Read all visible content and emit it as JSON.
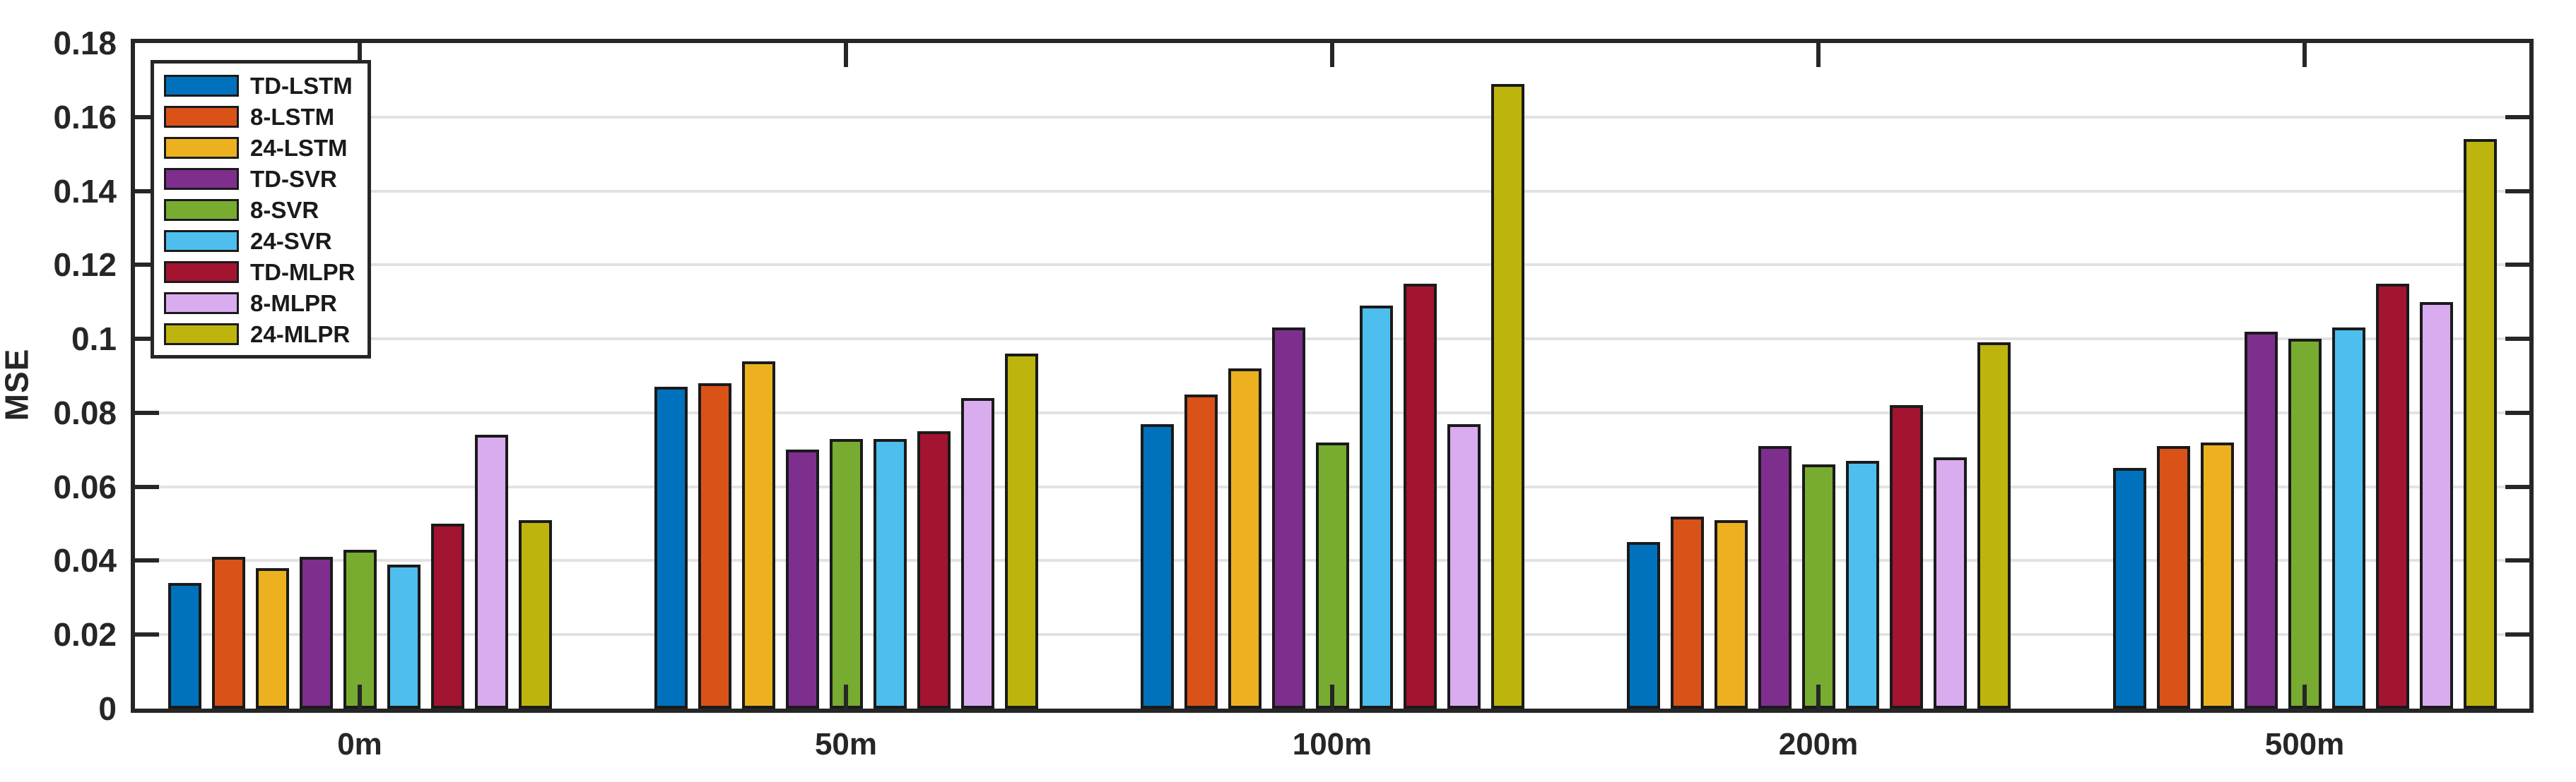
{
  "figure": {
    "background": "#ffffff",
    "axis_color": "#262626",
    "grid_color": "#e2e2e2",
    "bar_edge_color": "#1a1a1a"
  },
  "chart_data": {
    "type": "bar",
    "title": "",
    "xlabel": "",
    "ylabel": "MSE",
    "categories": [
      "0m",
      "50m",
      "100m",
      "200m",
      "500m"
    ],
    "series": [
      {
        "name": "TD-LSTM",
        "color": "#0072BD",
        "values": [
          0.034,
          0.087,
          0.077,
          0.045,
          0.065
        ]
      },
      {
        "name": "8-LSTM",
        "color": "#D95319",
        "values": [
          0.041,
          0.088,
          0.085,
          0.052,
          0.071
        ]
      },
      {
        "name": "24-LSTM",
        "color": "#EDB120",
        "values": [
          0.038,
          0.094,
          0.092,
          0.051,
          0.072
        ]
      },
      {
        "name": "TD-SVR",
        "color": "#7E2F8E",
        "values": [
          0.041,
          0.07,
          0.103,
          0.071,
          0.102
        ]
      },
      {
        "name": "8-SVR",
        "color": "#77AC30",
        "values": [
          0.043,
          0.073,
          0.072,
          0.066,
          0.1
        ]
      },
      {
        "name": "24-SVR",
        "color": "#4DBEEE",
        "values": [
          0.039,
          0.073,
          0.109,
          0.067,
          0.103
        ]
      },
      {
        "name": "TD-MLPR",
        "color": "#A2142F",
        "values": [
          0.05,
          0.075,
          0.115,
          0.082,
          0.115
        ]
      },
      {
        "name": "8-MLPR",
        "color": "#D9ACF0",
        "values": [
          0.074,
          0.084,
          0.077,
          0.068,
          0.11
        ]
      },
      {
        "name": "24-MLPR",
        "color": "#BDB50D",
        "values": [
          0.051,
          0.096,
          0.169,
          0.099,
          0.154
        ]
      }
    ],
    "ylim": [
      0,
      0.18
    ],
    "ytick_interval": 0.02,
    "ytick_labels": [
      "0",
      "0.02",
      "0.04",
      "0.06",
      "0.08",
      "0.1",
      "0.12",
      "0.14",
      "0.16",
      "0.18"
    ],
    "grid": true,
    "legend_position": "upper-left"
  }
}
